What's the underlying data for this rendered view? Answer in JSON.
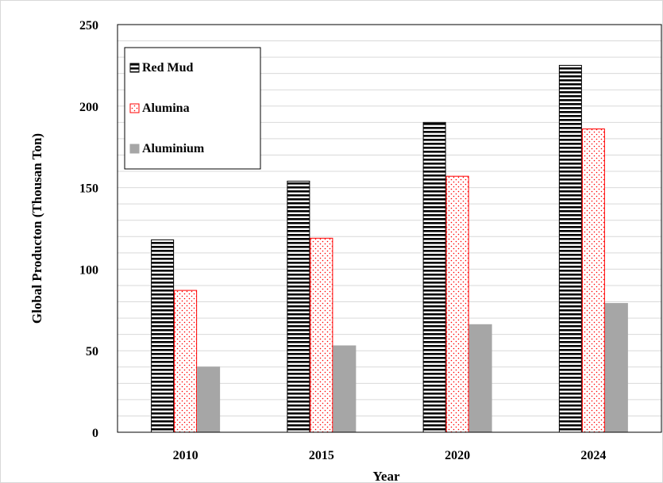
{
  "chart_data": {
    "type": "bar",
    "categories": [
      "2010",
      "2015",
      "2020",
      "2024"
    ],
    "series": [
      {
        "name": "Red Mud",
        "values": [
          118,
          154,
          190,
          225
        ],
        "pattern": "horizontal-stripes",
        "color": "#000000"
      },
      {
        "name": "Alumina",
        "values": [
          87,
          119,
          157,
          186
        ],
        "pattern": "red-dots",
        "color": "#ff0000"
      },
      {
        "name": "Aluminium",
        "values": [
          40,
          53,
          66,
          79
        ],
        "pattern": "solid",
        "color": "#a6a6a6"
      }
    ],
    "yticks": [
      0,
      50,
      100,
      150,
      200,
      250
    ],
    "ylim": [
      0,
      250
    ],
    "ylabel": "Global Producton (Thousan Ton)",
    "xlabel": "Year",
    "grid": "horizontal-minor",
    "legend": "top-left"
  }
}
